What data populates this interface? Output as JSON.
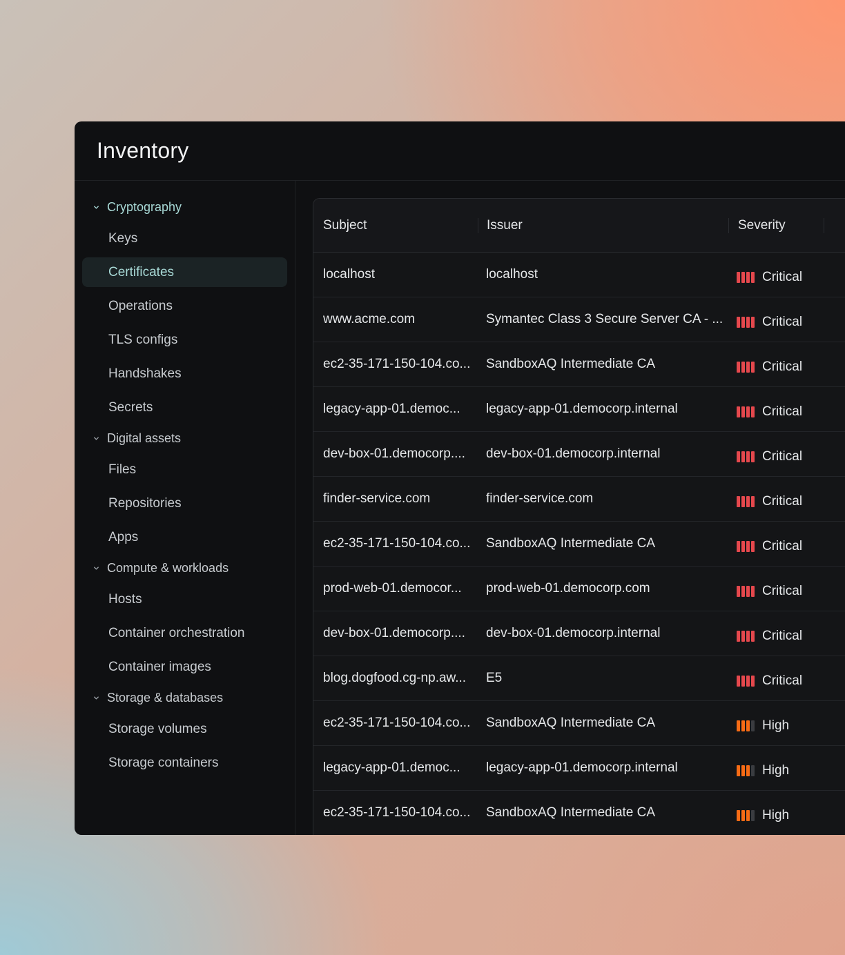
{
  "app": {
    "title": "Inventory"
  },
  "sidebar": {
    "groups": [
      {
        "label": "Cryptography",
        "active": true,
        "items": [
          "Keys",
          "Certificates",
          "Operations",
          "TLS configs",
          "Handshakes",
          "Secrets"
        ]
      },
      {
        "label": "Digital assets",
        "active": false,
        "items": [
          "Files",
          "Repositories",
          "Apps"
        ]
      },
      {
        "label": "Compute & workloads",
        "active": false,
        "items": [
          "Hosts",
          "Container orchestration",
          "Container images"
        ]
      },
      {
        "label": "Storage & databases",
        "active": false,
        "items": [
          "Storage volumes",
          "Storage containers"
        ]
      }
    ],
    "selected_item": "Certificates"
  },
  "table": {
    "columns": [
      "Subject",
      "Issuer",
      "Severity"
    ],
    "rows": [
      {
        "subject": "localhost",
        "issuer": "localhost",
        "severity": "Critical",
        "level": 4
      },
      {
        "subject": "www.acme.com",
        "issuer": "Symantec Class 3 Secure Server CA - ...",
        "severity": "Critical",
        "level": 4
      },
      {
        "subject": "ec2-35-171-150-104.co...",
        "issuer": "SandboxAQ Intermediate CA",
        "severity": "Critical",
        "level": 4
      },
      {
        "subject": "legacy-app-01.democ...",
        "issuer": "legacy-app-01.democorp.internal",
        "severity": "Critical",
        "level": 4
      },
      {
        "subject": "dev-box-01.democorp....",
        "issuer": "dev-box-01.democorp.internal",
        "severity": "Critical",
        "level": 4
      },
      {
        "subject": "finder-service.com",
        "issuer": "finder-service.com",
        "severity": "Critical",
        "level": 4
      },
      {
        "subject": "ec2-35-171-150-104.co...",
        "issuer": "SandboxAQ Intermediate CA",
        "severity": "Critical",
        "level": 4
      },
      {
        "subject": "prod-web-01.democor...",
        "issuer": "prod-web-01.democorp.com",
        "severity": "Critical",
        "level": 4
      },
      {
        "subject": "dev-box-01.democorp....",
        "issuer": "dev-box-01.democorp.internal",
        "severity": "Critical",
        "level": 4
      },
      {
        "subject": "blog.dogfood.cg-np.aw...",
        "issuer": "E5",
        "severity": "Critical",
        "level": 4
      },
      {
        "subject": "ec2-35-171-150-104.co...",
        "issuer": "SandboxAQ Intermediate CA",
        "severity": "High",
        "level": 3
      },
      {
        "subject": "legacy-app-01.democ...",
        "issuer": "legacy-app-01.democorp.internal",
        "severity": "High",
        "level": 3
      },
      {
        "subject": "ec2-35-171-150-104.co...",
        "issuer": "SandboxAQ Intermediate CA",
        "severity": "High",
        "level": 3
      }
    ]
  },
  "colors": {
    "critical": "#e5484d",
    "high": "#f76b15",
    "accent": "#a8d9d6"
  }
}
